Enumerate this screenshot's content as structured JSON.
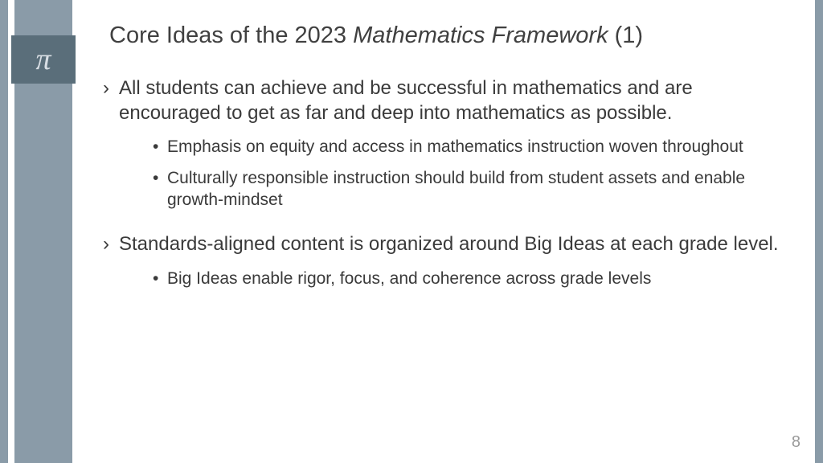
{
  "slide": {
    "title_prefix": "Core Ideas of the 2023 ",
    "title_italic": "Mathematics Framework",
    "title_suffix": " (1)",
    "pi_symbol": "π",
    "page_number": "8",
    "colors": {
      "sidebar": "#8a9ba8",
      "pi_box": "#5a6e7a",
      "pi_text": "#d8dee4",
      "body_text": "#3a3a3a",
      "page_num": "#9a9a9a",
      "background": "#ffffff"
    },
    "bullets": [
      {
        "text": "All students can achieve and be successful in mathematics and are encouraged to get as far and deep into mathematics as possible.",
        "sub": [
          "Emphasis on equity and access in mathematics instruction woven throughout",
          "Culturally responsible instruction should build from student assets and enable growth-mindset"
        ]
      },
      {
        "text": "Standards-aligned content is organized around Big Ideas at each grade level.",
        "sub": [
          "Big Ideas enable rigor, focus, and coherence across grade levels"
        ]
      }
    ]
  }
}
